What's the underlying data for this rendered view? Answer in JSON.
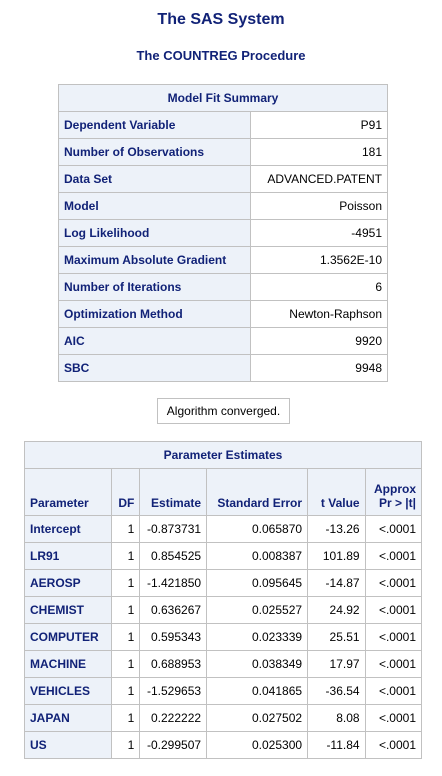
{
  "titles": {
    "system": "The SAS System",
    "procedure": "The COUNTREG Procedure"
  },
  "model_fit": {
    "caption": "Model Fit Summary",
    "rows": [
      {
        "label": "Dependent Variable",
        "value": "P91"
      },
      {
        "label": "Number of Observations",
        "value": "181"
      },
      {
        "label": "Data Set",
        "value": "ADVANCED.PATENT"
      },
      {
        "label": "Model",
        "value": "Poisson"
      },
      {
        "label": "Log Likelihood",
        "value": "-4951"
      },
      {
        "label": "Maximum Absolute Gradient",
        "value": "1.3562E-10"
      },
      {
        "label": "Number of Iterations",
        "value": "6"
      },
      {
        "label": "Optimization Method",
        "value": "Newton-Raphson"
      },
      {
        "label": "AIC",
        "value": "9920"
      },
      {
        "label": "SBC",
        "value": "9948"
      }
    ]
  },
  "convergence_note": "Algorithm converged.",
  "parameter_estimates": {
    "caption": "Parameter Estimates",
    "headers": {
      "parameter": "Parameter",
      "df": "DF",
      "estimate": "Estimate",
      "stderr": "Standard Error",
      "tvalue": "t Value",
      "prob_line1": "Approx",
      "prob_line2": "Pr > |t|"
    },
    "rows": [
      {
        "parameter": "Intercept",
        "df": "1",
        "estimate": "-0.873731",
        "stderr": "0.065870",
        "tvalue": "-13.26",
        "prob": "<.0001"
      },
      {
        "parameter": "LR91",
        "df": "1",
        "estimate": "0.854525",
        "stderr": "0.008387",
        "tvalue": "101.89",
        "prob": "<.0001"
      },
      {
        "parameter": "AEROSP",
        "df": "1",
        "estimate": "-1.421850",
        "stderr": "0.095645",
        "tvalue": "-14.87",
        "prob": "<.0001"
      },
      {
        "parameter": "CHEMIST",
        "df": "1",
        "estimate": "0.636267",
        "stderr": "0.025527",
        "tvalue": "24.92",
        "prob": "<.0001"
      },
      {
        "parameter": "COMPUTER",
        "df": "1",
        "estimate": "0.595343",
        "stderr": "0.023339",
        "tvalue": "25.51",
        "prob": "<.0001"
      },
      {
        "parameter": "MACHINE",
        "df": "1",
        "estimate": "0.688953",
        "stderr": "0.038349",
        "tvalue": "17.97",
        "prob": "<.0001"
      },
      {
        "parameter": "VEHICLES",
        "df": "1",
        "estimate": "-1.529653",
        "stderr": "0.041865",
        "tvalue": "-36.54",
        "prob": "<.0001"
      },
      {
        "parameter": "JAPAN",
        "df": "1",
        "estimate": "0.222222",
        "stderr": "0.027502",
        "tvalue": "8.08",
        "prob": "<.0001"
      },
      {
        "parameter": "US",
        "df": "1",
        "estimate": "-0.299507",
        "stderr": "0.025300",
        "tvalue": "-11.84",
        "prob": "<.0001"
      }
    ]
  },
  "colors": {
    "header_text": "#112277",
    "header_bg": "#edf2f9",
    "border": "#c1c1c1"
  }
}
